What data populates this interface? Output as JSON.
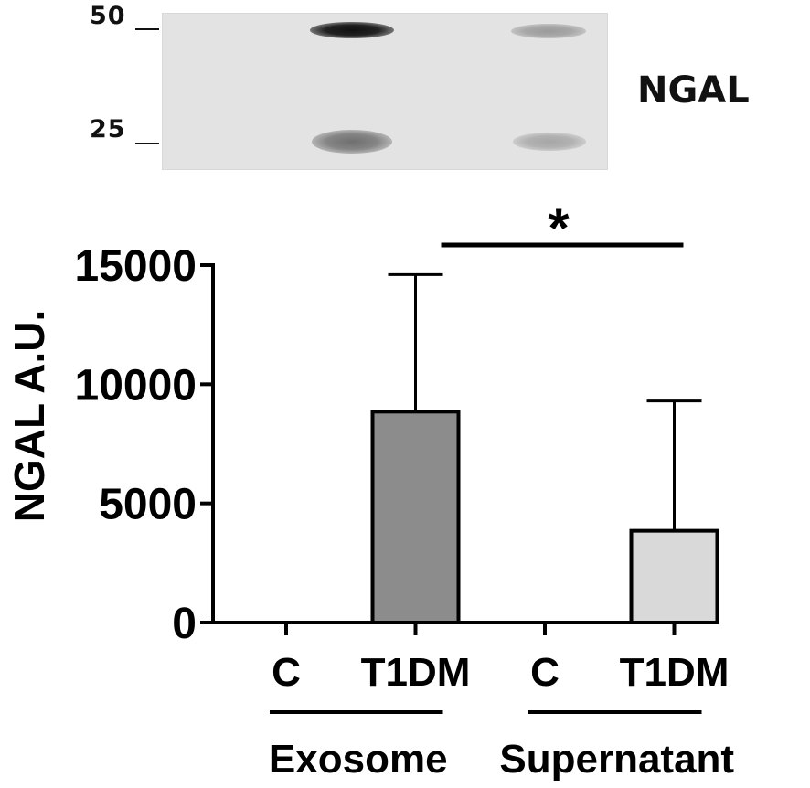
{
  "blot": {
    "label": "NGAL",
    "markers": [
      "50",
      "25"
    ]
  },
  "chart_data": {
    "type": "bar",
    "ylabel": "NGAL A.U.",
    "ylim": [
      0,
      15000
    ],
    "yticks": [
      "0",
      "5000",
      "10000",
      "15000"
    ],
    "categories": [
      "C",
      "T1DM",
      "C",
      "T1DM"
    ],
    "groups": [
      {
        "label": "Exosome",
        "categories": [
          0,
          1
        ]
      },
      {
        "label": "Supernatant",
        "categories": [
          2,
          3
        ]
      }
    ],
    "values": [
      0,
      8850,
      0,
      3850
    ],
    "errors": [
      0,
      5750,
      0,
      5450
    ],
    "colors": [
      "#ffffff",
      "#8c8c8c",
      "#ffffff",
      "#d9d9d9"
    ],
    "significance": {
      "from": 1,
      "to": 3,
      "label": "*"
    }
  }
}
